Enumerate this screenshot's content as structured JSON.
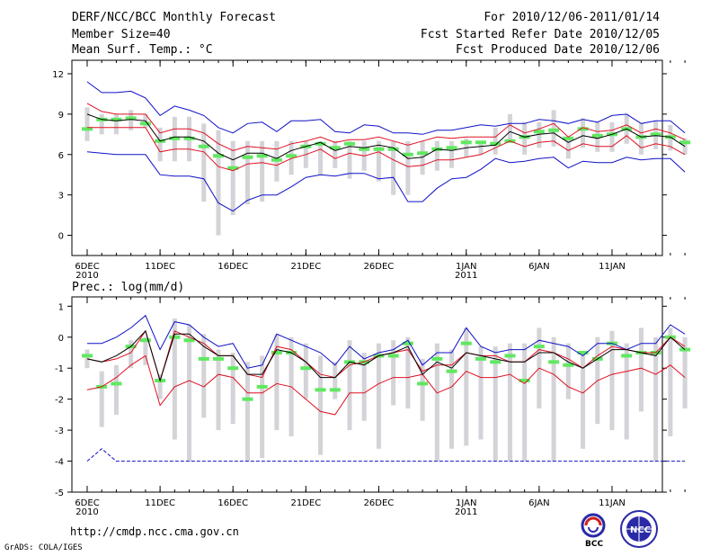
{
  "header": {
    "title": "DERF/NCC/BCC Monthly Forecast",
    "member_size": "Member Size=40",
    "variable": "Mean Surf. Temp.: °C",
    "forecast_period": "For 2010/12/06-2011/01/14",
    "start_date": "Fcst Started Refer Date 2010/12/05",
    "produced_date": "Fcst Produced Date 2010/12/06"
  },
  "footer": {
    "url": "http://cmdp.ncc.cma.gov.cn",
    "credit": "GrADS: COLA/IGES",
    "logo_bcc": "BCC",
    "logo_ncc": "NCC"
  },
  "colors": {
    "max_line": "#1010c8",
    "min_line": "#1010c8",
    "upper_line": "#e01020",
    "lower_line": "#e01020",
    "mean_line": "#000000",
    "box": "#d3d3d8",
    "median": "#60e860"
  },
  "chart_data": [
    {
      "type": "line",
      "title": "Mean Surf. Temp.: °C",
      "ylim": [
        -1.5,
        13
      ],
      "yticks": [
        0,
        3,
        6,
        9,
        12
      ],
      "xlabels": [
        {
          "day": 0,
          "label": "6DEC",
          "sub": "2010"
        },
        {
          "day": 5,
          "label": "11DEC",
          "sub": ""
        },
        {
          "day": 10,
          "label": "16DEC",
          "sub": ""
        },
        {
          "day": 15,
          "label": "21DEC",
          "sub": ""
        },
        {
          "day": 20,
          "label": "26DEC",
          "sub": ""
        },
        {
          "day": 26,
          "label": "1JAN",
          "sub": "2011"
        },
        {
          "day": 31,
          "label": "6JAN",
          "sub": ""
        },
        {
          "day": 36,
          "label": "11JAN",
          "sub": ""
        }
      ],
      "series": [
        {
          "name": "max",
          "values": [
            11.4,
            10.6,
            10.6,
            10.7,
            10.2,
            8.9,
            9.6,
            9.3,
            8.9,
            8.0,
            7.6,
            8.3,
            8.4,
            7.7,
            8.5,
            8.5,
            8.6,
            7.7,
            7.6,
            8.2,
            8.1,
            7.6,
            7.6,
            7.5,
            7.8,
            7.8,
            8.0,
            8.2,
            8.1,
            8.3,
            8.3,
            8.6,
            8.5,
            8.3,
            8.6,
            8.4,
            8.9,
            9.0,
            8.3,
            8.5,
            8.5,
            7.6
          ]
        },
        {
          "name": "upper",
          "values": [
            9.8,
            9.2,
            9.0,
            9.0,
            9.0,
            7.6,
            7.9,
            7.9,
            7.6,
            6.8,
            6.3,
            6.6,
            6.5,
            6.4,
            6.8,
            7.0,
            7.3,
            6.9,
            7.1,
            7.1,
            7.3,
            7.0,
            6.7,
            7.0,
            7.3,
            7.2,
            7.3,
            7.3,
            7.3,
            8.2,
            7.6,
            7.9,
            8.3,
            7.3,
            8.0,
            7.7,
            7.8,
            8.2,
            7.6,
            7.9,
            7.6,
            7.1
          ]
        },
        {
          "name": "mean",
          "values": [
            9.0,
            8.6,
            8.5,
            8.6,
            8.5,
            7.0,
            7.3,
            7.3,
            7.0,
            6.1,
            5.6,
            6.1,
            6.1,
            5.7,
            6.3,
            6.6,
            6.9,
            6.3,
            6.6,
            6.5,
            6.7,
            6.5,
            5.7,
            5.8,
            6.4,
            6.3,
            6.5,
            6.6,
            6.7,
            7.7,
            7.3,
            7.5,
            7.6,
            6.9,
            7.4,
            7.2,
            7.5,
            7.9,
            7.3,
            7.4,
            7.3,
            6.6
          ]
        },
        {
          "name": "lower",
          "values": [
            8.0,
            8.0,
            8.0,
            8.0,
            8.0,
            6.2,
            6.4,
            6.4,
            6.2,
            5.1,
            4.8,
            5.3,
            5.4,
            5.2,
            5.7,
            6.0,
            6.4,
            5.7,
            6.1,
            5.9,
            6.2,
            5.6,
            5.1,
            5.2,
            5.6,
            5.6,
            5.8,
            6.0,
            6.5,
            7.0,
            6.6,
            6.9,
            7.0,
            6.3,
            6.8,
            6.6,
            6.6,
            7.4,
            6.5,
            6.8,
            6.6,
            6.0
          ]
        },
        {
          "name": "min",
          "values": [
            6.2,
            6.1,
            6.0,
            6.0,
            6.0,
            4.5,
            4.4,
            4.4,
            4.2,
            2.4,
            1.8,
            2.6,
            3.0,
            3.0,
            3.6,
            4.3,
            4.5,
            4.4,
            4.6,
            4.6,
            4.2,
            4.3,
            2.5,
            2.5,
            3.5,
            4.2,
            4.3,
            4.9,
            5.7,
            5.4,
            5.5,
            5.7,
            5.8,
            5.0,
            5.5,
            5.4,
            5.4,
            5.8,
            5.6,
            5.7,
            5.7,
            4.7
          ]
        },
        {
          "name": "box_high",
          "values": [
            9.5,
            9.0,
            9.0,
            9.3,
            9.0,
            8.0,
            8.8,
            8.8,
            8.3,
            7.8,
            7.0,
            7.0,
            7.0,
            7.0,
            7.0,
            7.0,
            7.0,
            7.0,
            7.0,
            7.0,
            7.0,
            7.0,
            7.0,
            7.0,
            7.0,
            7.0,
            7.2,
            7.0,
            8.0,
            9.0,
            8.4,
            8.4,
            9.3,
            7.2,
            8.7,
            8.4,
            8.4,
            9.0,
            8.3,
            8.5,
            8.2,
            7.2
          ]
        },
        {
          "name": "box_low",
          "values": [
            7.0,
            7.5,
            7.5,
            7.8,
            8.0,
            5.5,
            5.5,
            5.5,
            2.5,
            0.0,
            1.5,
            2.3,
            2.5,
            4.0,
            4.5,
            5.0,
            4.5,
            5.0,
            4.2,
            4.8,
            4.0,
            3.0,
            3.0,
            4.5,
            4.8,
            5.0,
            5.8,
            6.0,
            6.0,
            7.0,
            6.0,
            6.5,
            6.6,
            5.7,
            6.5,
            6.2,
            6.2,
            6.8,
            6.0,
            6.4,
            6.3,
            6.0
          ]
        },
        {
          "name": "median",
          "values": [
            7.9,
            8.6,
            8.6,
            8.7,
            8.3,
            7.0,
            7.2,
            7.2,
            6.6,
            5.9,
            5.0,
            5.8,
            5.9,
            5.6,
            5.9,
            6.6,
            6.8,
            6.5,
            6.8,
            6.4,
            6.4,
            6.4,
            6.0,
            6.1,
            6.4,
            6.5,
            6.9,
            6.9,
            6.8,
            7.0,
            7.3,
            7.7,
            7.8,
            7.2,
            7.9,
            7.4,
            7.5,
            7.9,
            7.3,
            7.5,
            7.3,
            6.9
          ]
        }
      ]
    },
    {
      "type": "line",
      "title": "Prec.: log(mm/d)",
      "ylim": [
        -5,
        1.3
      ],
      "yticks": [
        -5,
        -4,
        -3,
        -2,
        -1,
        0,
        1
      ],
      "xlabels": [
        {
          "day": 0,
          "label": "6DEC",
          "sub": "2010"
        },
        {
          "day": 5,
          "label": "11DEC",
          "sub": ""
        },
        {
          "day": 10,
          "label": "16DEC",
          "sub": ""
        },
        {
          "day": 15,
          "label": "21DEC",
          "sub": ""
        },
        {
          "day": 20,
          "label": "26DEC",
          "sub": ""
        },
        {
          "day": 26,
          "label": "1JAN",
          "sub": "2011"
        },
        {
          "day": 31,
          "label": "6JAN",
          "sub": ""
        },
        {
          "day": 36,
          "label": "11JAN",
          "sub": ""
        }
      ],
      "series": [
        {
          "name": "max",
          "values": [
            -0.2,
            -0.2,
            0.0,
            0.3,
            0.7,
            -0.4,
            0.5,
            0.4,
            0.0,
            -0.3,
            -0.2,
            -1.0,
            -0.9,
            0.1,
            -0.1,
            -0.3,
            -0.5,
            -0.9,
            -0.3,
            -0.7,
            -0.5,
            -0.4,
            -0.1,
            -0.9,
            -0.5,
            -0.5,
            0.3,
            -0.3,
            -0.5,
            -0.4,
            -0.4,
            -0.1,
            -0.2,
            -0.3,
            -0.6,
            -0.2,
            -0.2,
            -0.4,
            -0.2,
            -0.2,
            0.4,
            0.1
          ]
        },
        {
          "name": "upper",
          "values": [
            -0.7,
            -0.8,
            -0.7,
            -0.5,
            0.2,
            -1.4,
            0.2,
            0.0,
            -0.2,
            -0.6,
            -0.6,
            -1.2,
            -1.3,
            -0.3,
            -0.4,
            -0.8,
            -1.2,
            -1.3,
            -0.9,
            -0.8,
            -0.6,
            -0.5,
            -0.4,
            -1.1,
            -0.9,
            -0.9,
            -0.5,
            -0.6,
            -0.6,
            -0.8,
            -0.8,
            -0.4,
            -0.5,
            -0.7,
            -1.0,
            -0.6,
            -0.3,
            -0.4,
            -0.5,
            -0.5,
            0.0,
            -0.3
          ]
        },
        {
          "name": "mean",
          "values": [
            -0.7,
            -0.8,
            -0.6,
            -0.3,
            0.2,
            -1.4,
            0.1,
            0.1,
            -0.3,
            -0.6,
            -0.6,
            -1.2,
            -1.2,
            -0.4,
            -0.5,
            -0.8,
            -1.3,
            -1.3,
            -0.8,
            -0.9,
            -0.6,
            -0.5,
            -0.3,
            -1.2,
            -0.8,
            -1.0,
            -0.5,
            -0.6,
            -0.7,
            -0.8,
            -0.8,
            -0.5,
            -0.5,
            -0.8,
            -1.0,
            -0.7,
            -0.4,
            -0.4,
            -0.5,
            -0.6,
            0.0,
            -0.4
          ]
        },
        {
          "name": "lower",
          "values": [
            -1.7,
            -1.6,
            -1.3,
            -0.9,
            -0.6,
            -2.2,
            -1.6,
            -1.4,
            -1.6,
            -1.2,
            -1.3,
            -1.8,
            -1.8,
            -1.5,
            -1.6,
            -2.0,
            -2.4,
            -2.5,
            -1.8,
            -1.8,
            -1.5,
            -1.3,
            -1.3,
            -1.2,
            -1.8,
            -1.6,
            -1.1,
            -1.3,
            -1.3,
            -1.2,
            -1.5,
            -1.0,
            -1.2,
            -1.6,
            -1.8,
            -1.4,
            -1.2,
            -1.1,
            -1.0,
            -1.2,
            -0.9,
            -1.3
          ]
        },
        {
          "name": "min",
          "values": [
            -4.0,
            -3.6,
            -4.0,
            -4.0,
            -4.0,
            -4.0,
            -4.0,
            -4.0,
            -4.0,
            -4.0,
            -4.0,
            -4.0,
            -4.0,
            -4.0,
            -4.0,
            -4.0,
            -4.0,
            -4.0,
            -4.0,
            -4.0,
            -4.0,
            -4.0,
            -4.0,
            -4.0,
            -4.0,
            -4.0,
            -4.0,
            -4.0,
            -4.0,
            -4.0,
            -4.0,
            -4.0,
            -4.0,
            -4.0,
            -4.0,
            -4.0,
            -4.0,
            -4.0,
            -4.0,
            -4.0,
            -4.0,
            -4.0
          ]
        },
        {
          "name": "box_high",
          "values": [
            -0.4,
            -1.1,
            -0.9,
            -0.1,
            0.0,
            -1.2,
            0.6,
            0.4,
            0.1,
            -0.4,
            -0.5,
            -0.8,
            -0.6,
            0.1,
            0.0,
            -0.2,
            -0.6,
            -0.8,
            -0.1,
            -0.5,
            -0.2,
            -0.1,
            0.0,
            -0.7,
            -0.2,
            -0.4,
            0.3,
            -0.3,
            -0.3,
            -0.2,
            -0.2,
            0.3,
            0.0,
            -0.2,
            -0.5,
            0.0,
            0.2,
            -0.2,
            0.3,
            0.0,
            0.3,
            0.0
          ]
        },
        {
          "name": "box_low",
          "values": [
            -1.0,
            -2.9,
            -2.5,
            -1.0,
            -0.9,
            -2.0,
            -3.3,
            -4.0,
            -2.6,
            -3.0,
            -2.8,
            -4.0,
            -3.9,
            -3.0,
            -3.2,
            -2.0,
            -3.8,
            -2.0,
            -3.0,
            -2.7,
            -3.6,
            -2.2,
            -2.3,
            -2.7,
            -4.0,
            -3.6,
            -3.5,
            -3.3,
            -4.0,
            -4.0,
            -4.0,
            -2.3,
            -4.0,
            -2.0,
            -3.6,
            -2.8,
            -3.0,
            -3.3,
            -2.4,
            -4.0,
            -3.2,
            -2.3
          ]
        },
        {
          "name": "median",
          "values": [
            -0.6,
            -1.6,
            -1.5,
            -0.3,
            -0.1,
            -1.4,
            0.0,
            -0.1,
            -0.7,
            -0.7,
            -1.0,
            -2.0,
            -1.6,
            -0.5,
            -0.5,
            -1.0,
            -1.7,
            -1.7,
            -0.8,
            -0.8,
            -0.6,
            -0.6,
            -0.2,
            -1.5,
            -0.7,
            -1.1,
            -0.2,
            -0.7,
            -0.8,
            -0.6,
            -1.4,
            -0.3,
            -0.8,
            -0.9,
            -0.5,
            -0.7,
            -0.2,
            -0.6,
            -0.5,
            -0.5,
            0.0,
            -0.4
          ]
        }
      ]
    }
  ]
}
